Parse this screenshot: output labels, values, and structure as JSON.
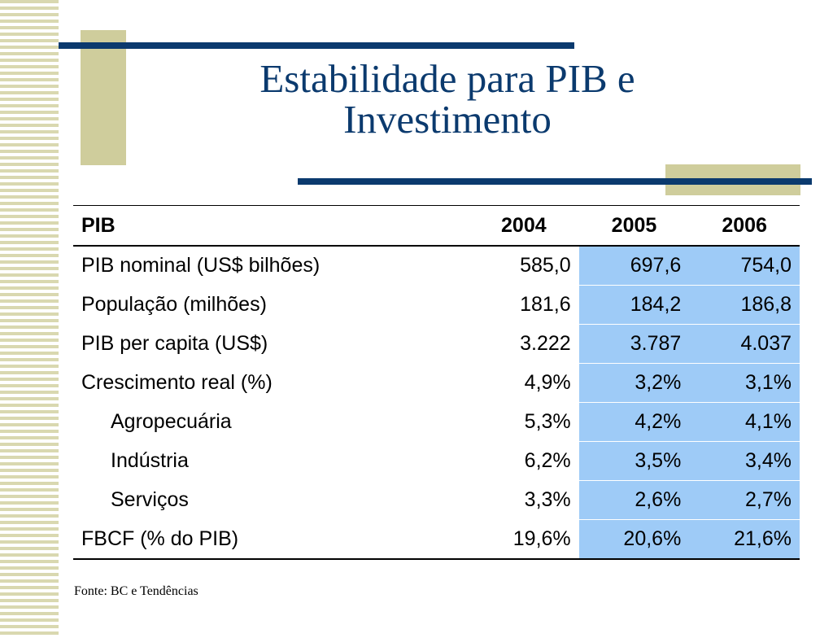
{
  "title": {
    "line1": "Estabilidade para PIB e",
    "line2": "Investimento"
  },
  "table": {
    "headers": [
      "PIB",
      "2004",
      "2005",
      "2006"
    ],
    "rows": [
      {
        "label": "PIB nominal (US$ bilhões)",
        "v2004": "585,0",
        "v2005": "697,6",
        "v2006": "754,0"
      },
      {
        "label": "População (milhões)",
        "v2004": "181,6",
        "v2005": "184,2",
        "v2006": "186,8"
      },
      {
        "label": "PIB per capita (US$)",
        "v2004": "3.222",
        "v2005": "3.787",
        "v2006": "4.037"
      },
      {
        "label": "Crescimento real (%)",
        "v2004": "4,9%",
        "v2005": "3,2%",
        "v2006": "3,1%"
      },
      {
        "label": "Agropecuária",
        "v2004": "5,3%",
        "v2005": "4,2%",
        "v2006": "4,1%"
      },
      {
        "label": "Indústria",
        "v2004": "6,2%",
        "v2005": "3,5%",
        "v2006": "3,4%"
      },
      {
        "label": "Serviços",
        "v2004": "3,3%",
        "v2005": "2,6%",
        "v2006": "2,7%"
      },
      {
        "label": "FBCF (% do PIB)",
        "v2004": "19,6%",
        "v2005": "20,6%",
        "v2006": "21,6%"
      }
    ]
  },
  "footnote": "Fonte: BC e Tendências",
  "colors": {
    "navy": "#0b3a6e",
    "khaki": "#cfcd9c",
    "highlight": "#9ecbf7"
  }
}
